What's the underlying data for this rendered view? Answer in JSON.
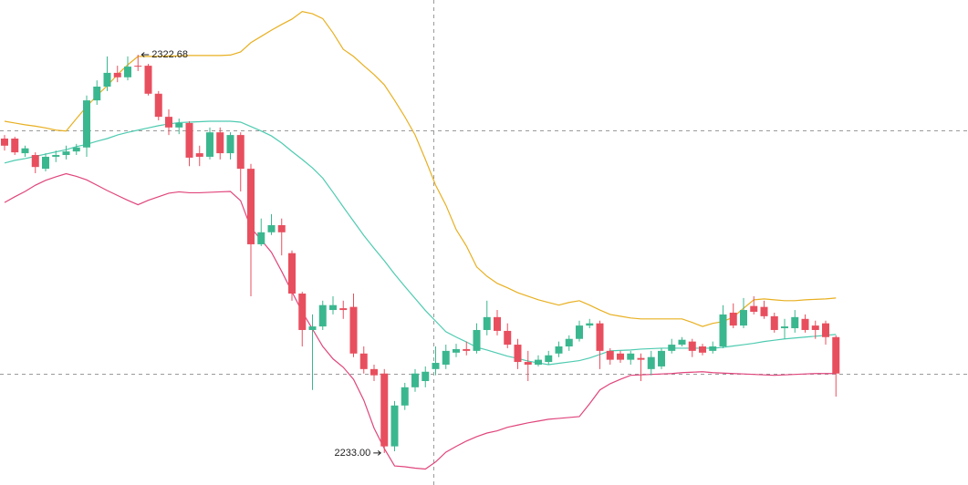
{
  "chart_data": {
    "type": "candlestick",
    "ylim": [
      2225.8,
      2335.0
    ],
    "up_color": "#3bb78f",
    "down_color": "#e84f5e",
    "open": [
      2303.8,
      2303.8,
      2300.5,
      2300.1,
      2297.0,
      2299.7,
      2300.1,
      2300.9,
      2301.8,
      2312.4,
      2315.5,
      2318.6,
      2317.6,
      2320.2,
      2320.2,
      2313.9,
      2308.7,
      2306.3,
      2307.3,
      2300.5,
      2299.7,
      2305.2,
      2300.5,
      2304.6,
      2297.0,
      2280.0,
      2282.7,
      2284.3,
      2278.0,
      2268.9,
      2260.7,
      2261.5,
      2265.2,
      2265.6,
      2265.9,
      2255.4,
      2251.9,
      2250.9,
      2234.5,
      2243.7,
      2247.8,
      2249.2,
      2251.9,
      2252.9,
      2255.6,
      2256.4,
      2256.0,
      2260.7,
      2263.6,
      2260.5,
      2257.4,
      2253.5,
      2252.9,
      2253.5,
      2255.4,
      2257.0,
      2258.7,
      2261.7,
      2262.2,
      2256.0,
      2255.4,
      2254.0,
      2254.4,
      2251.9,
      2252.5,
      2256.0,
      2257.4,
      2258.1,
      2257.0,
      2256.0,
      2257.0,
      2264.6,
      2261.7,
      2266.1,
      2265.9,
      2263.8,
      2261.1,
      2261.1,
      2263.2,
      2261.7,
      2262.2,
      2259.1
    ],
    "high": [
      2304.6,
      2304.2,
      2302.2,
      2300.7,
      2300.5,
      2301.1,
      2302.2,
      2302.6,
      2313.5,
      2316.9,
      2322.3,
      2320.2,
      2322.3,
      2322.68,
      2320.6,
      2314.5,
      2310.4,
      2308.3,
      2307.7,
      2302.2,
      2306.3,
      2306.3,
      2305.2,
      2305.2,
      2298.1,
      2285.8,
      2286.8,
      2285.8,
      2278.6,
      2269.3,
      2264.2,
      2267.3,
      2268.3,
      2267.3,
      2268.9,
      2257.0,
      2252.9,
      2251.9,
      2244.7,
      2248.8,
      2251.9,
      2252.5,
      2257.0,
      2257.4,
      2257.6,
      2258.1,
      2262.2,
      2267.3,
      2265.2,
      2262.2,
      2258.7,
      2256.0,
      2255.0,
      2256.0,
      2258.1,
      2259.5,
      2262.8,
      2263.2,
      2262.8,
      2256.6,
      2256.0,
      2256.0,
      2255.4,
      2256.0,
      2256.6,
      2258.7,
      2259.1,
      2258.7,
      2257.6,
      2258.1,
      2266.3,
      2266.7,
      2267.9,
      2268.3,
      2267.3,
      2264.6,
      2263.2,
      2265.2,
      2264.2,
      2262.8,
      2262.8,
      2259.5
    ],
    "low": [
      2301.1,
      2300.1,
      2299.7,
      2296.0,
      2296.4,
      2298.5,
      2299.1,
      2300.1,
      2299.7,
      2311.4,
      2314.5,
      2316.5,
      2316.9,
      2319.0,
      2313.5,
      2307.9,
      2304.6,
      2304.8,
      2297.6,
      2297.6,
      2299.1,
      2299.1,
      2299.1,
      2291.9,
      2268.3,
      2279.6,
      2282.1,
      2277.5,
      2267.3,
      2257.0,
      2247.2,
      2260.7,
      2264.2,
      2263.2,
      2254.6,
      2250.9,
      2249.2,
      2233.0,
      2233.4,
      2242.7,
      2246.8,
      2247.8,
      2250.5,
      2251.9,
      2254.6,
      2255.0,
      2255.4,
      2259.5,
      2259.5,
      2256.6,
      2251.9,
      2249.2,
      2252.5,
      2252.9,
      2254.6,
      2256.0,
      2258.1,
      2261.1,
      2251.9,
      2252.9,
      2253.3,
      2252.9,
      2249.2,
      2250.5,
      2251.9,
      2255.4,
      2257.0,
      2254.6,
      2255.0,
      2255.4,
      2256.6,
      2261.1,
      2261.1,
      2264.2,
      2263.2,
      2260.1,
      2258.7,
      2260.1,
      2260.1,
      2258.7,
      2257.4,
      2245.7
    ],
    "close": [
      2302.2,
      2300.7,
      2301.6,
      2297.4,
      2299.7,
      2300.1,
      2300.9,
      2301.8,
      2312.4,
      2315.5,
      2318.6,
      2317.6,
      2320.0,
      2320.0,
      2313.9,
      2308.7,
      2306.3,
      2307.3,
      2299.5,
      2299.7,
      2305.2,
      2300.5,
      2304.6,
      2297.0,
      2280.0,
      2282.7,
      2284.3,
      2282.7,
      2268.9,
      2260.7,
      2261.5,
      2266.3,
      2266.3,
      2265.2,
      2255.4,
      2251.9,
      2250.5,
      2234.5,
      2243.7,
      2247.8,
      2250.9,
      2251.3,
      2253.3,
      2256.0,
      2256.4,
      2256.0,
      2260.7,
      2263.6,
      2260.5,
      2257.4,
      2253.5,
      2252.9,
      2254.0,
      2255.0,
      2257.0,
      2258.7,
      2261.7,
      2262.2,
      2256.0,
      2254.0,
      2254.0,
      2255.4,
      2254.0,
      2254.6,
      2256.0,
      2257.4,
      2258.5,
      2256.0,
      2255.6,
      2257.0,
      2264.2,
      2261.7,
      2265.2,
      2264.8,
      2263.8,
      2260.7,
      2261.5,
      2263.6,
      2260.7,
      2260.7,
      2259.1,
      2250.9
    ],
    "bands": [
      {
        "color": "#e8b021",
        "values": [
          2307.7,
          2307.3,
          2306.9,
          2306.6,
          2306.2,
          2305.7,
          2305.5,
          2308.3,
          2311.0,
          2313.5,
          2315.7,
          2318.2,
          2320.4,
          2322.3,
          2322.3,
          2322.3,
          2322.4,
          2322.4,
          2322.5,
          2322.5,
          2322.5,
          2322.5,
          2322.6,
          2323.3,
          2325.4,
          2326.8,
          2328.2,
          2329.5,
          2330.7,
          2332.4,
          2331.9,
          2330.8,
          2327.6,
          2323.9,
          2322.3,
          2320.2,
          2318.2,
          2315.9,
          2312.4,
          2308.7,
          2304.6,
          2299.1,
          2293.3,
          2288.8,
          2283.3,
          2279.6,
          2274.9,
          2272.8,
          2271.2,
          2270.2,
          2269.1,
          2268.3,
          2267.5,
          2266.9,
          2266.3,
          2266.9,
          2267.3,
          2266.3,
          2265.2,
          2264.2,
          2263.8,
          2263.4,
          2263.2,
          2263.2,
          2263.2,
          2263.2,
          2263.2,
          2262.4,
          2261.5,
          2262.2,
          2262.6,
          2263.6,
          2265.6,
          2267.5,
          2267.7,
          2267.5,
          2267.3,
          2267.3,
          2267.5,
          2267.6,
          2267.7,
          2267.9
        ]
      },
      {
        "color": "#4ecbb0",
        "values": [
          2298.3,
          2298.9,
          2299.3,
          2299.8,
          2300.3,
          2300.8,
          2301.3,
          2302.0,
          2302.5,
          2303.2,
          2303.8,
          2304.6,
          2305.2,
          2305.7,
          2306.2,
          2306.7,
          2307.1,
          2307.4,
          2307.5,
          2307.6,
          2307.7,
          2307.7,
          2307.7,
          2307.5,
          2306.5,
          2305.5,
          2304.4,
          2302.8,
          2300.9,
          2299.1,
          2297.2,
          2294.9,
          2291.7,
          2288.4,
          2285.2,
          2282.0,
          2279.1,
          2276.3,
          2273.3,
          2270.5,
          2267.8,
          2265.1,
          2262.7,
          2260.3,
          2259.1,
          2258.0,
          2256.8,
          2256.2,
          2255.5,
          2254.8,
          2254.3,
          2253.7,
          2253.3,
          2252.9,
          2253.2,
          2253.5,
          2253.8,
          2254.4,
          2255.2,
          2256.0,
          2256.1,
          2256.2,
          2256.4,
          2256.5,
          2256.6,
          2256.6,
          2256.6,
          2256.6,
          2256.6,
          2256.6,
          2256.8,
          2257.1,
          2257.4,
          2257.7,
          2258.1,
          2258.4,
          2258.7,
          2258.9,
          2259.1,
          2259.3,
          2259.5,
          2259.7
        ]
      },
      {
        "color": "#e0457c",
        "values": [
          2289.4,
          2290.7,
          2291.9,
          2293.3,
          2294.4,
          2295.2,
          2295.9,
          2295.3,
          2294.5,
          2293.3,
          2292.1,
          2291.0,
          2289.9,
          2288.9,
          2289.9,
          2290.7,
          2291.5,
          2291.8,
          2291.6,
          2291.6,
          2291.7,
          2291.8,
          2291.9,
          2289.8,
          2283.7,
          2281.0,
          2278.2,
          2273.9,
          2269.3,
          2264.8,
          2260.9,
          2257.0,
          2254.2,
          2252.3,
          2249.6,
          2244.9,
          2238.6,
          2234.0,
          2230.1,
          2229.9,
          2229.6,
          2229.4,
          2231.0,
          2233.2,
          2234.5,
          2235.7,
          2236.7,
          2237.5,
          2238.0,
          2238.8,
          2239.3,
          2239.8,
          2240.2,
          2240.6,
          2240.8,
          2241.0,
          2241.2,
          2244.1,
          2247.2,
          2248.6,
          2249.6,
          2250.5,
          2250.6,
          2250.7,
          2250.8,
          2250.9,
          2251.1,
          2251.2,
          2251.3,
          2251.1,
          2251.0,
          2250.9,
          2250.8,
          2250.7,
          2250.6,
          2250.5,
          2250.6,
          2250.7,
          2250.8,
          2250.9,
          2250.9,
          2250.9
        ]
      }
    ],
    "price_lines": [
      2305.7,
      2250.9
    ],
    "annotations": [
      {
        "label": "2322.68",
        "value": 2322.68
      },
      {
        "label": "2233.00",
        "value": 2233.0
      }
    ]
  }
}
